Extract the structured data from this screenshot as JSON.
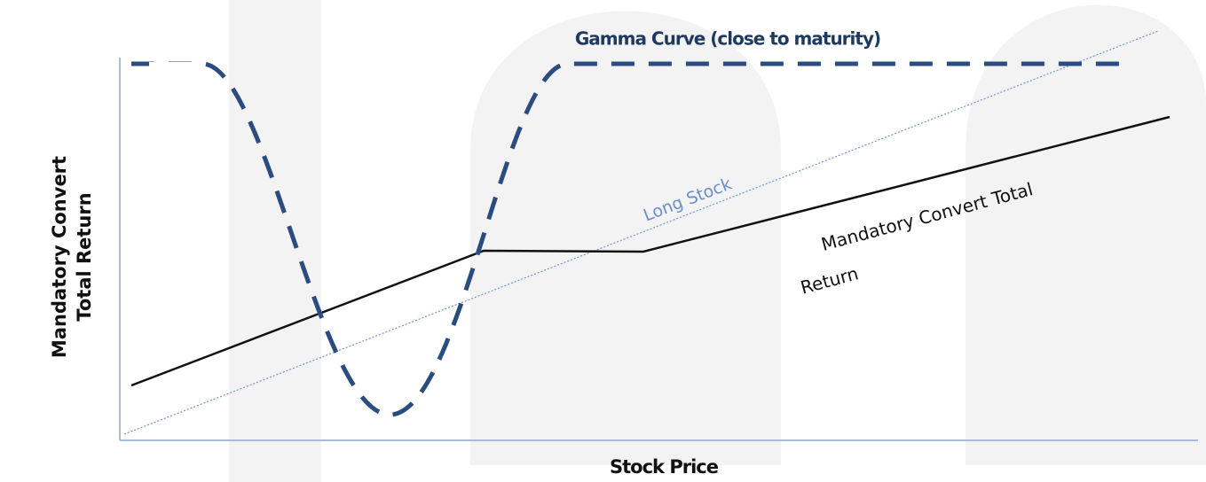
{
  "diagram": {
    "title": "Gamma Curve (close to maturity)",
    "long_stock_label": "Long Stock",
    "convert_label": [
      "Mandatory Convert Total",
      "Return"
    ],
    "y_axis_label": [
      "Mandatory Convert",
      "Total Return"
    ],
    "x_axis_label": "Stock Price"
  }
}
